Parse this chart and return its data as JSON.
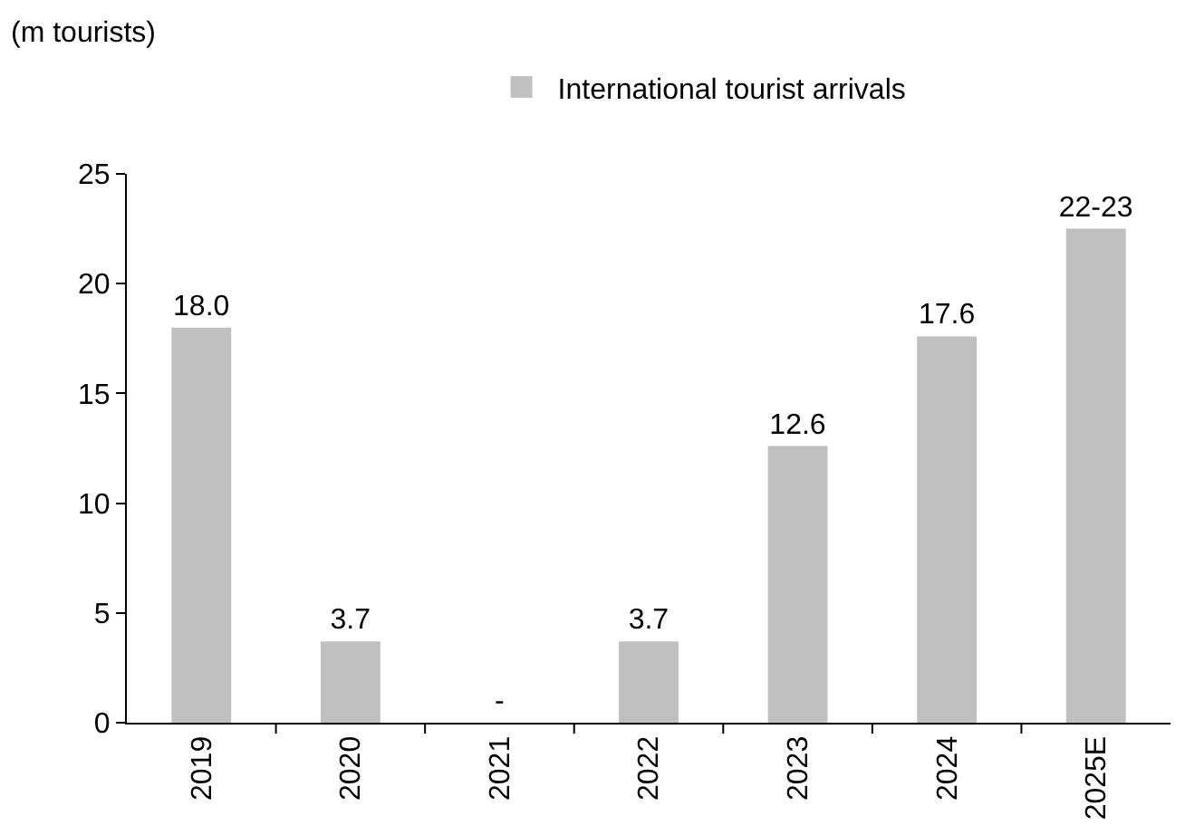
{
  "chart_data": {
    "type": "bar",
    "annotations": [
      "(m tourists)"
    ],
    "categories": [
      "2019",
      "2020",
      "2021",
      "2022",
      "2023",
      "2024",
      "2025E"
    ],
    "series": [
      {
        "name": "International tourist arrivals",
        "color": "#c0c0c0",
        "values": [
          18.0,
          3.7,
          0,
          3.7,
          12.6,
          17.6,
          22.5
        ],
        "value_labels": [
          "18.0",
          "3.7",
          "-",
          "3.7",
          "12.6",
          "17.6",
          "22-23"
        ]
      }
    ],
    "ylim": [
      0,
      25
    ],
    "yticks": [
      0,
      5,
      10,
      15,
      20,
      25
    ],
    "grid": false,
    "legend": "top"
  }
}
